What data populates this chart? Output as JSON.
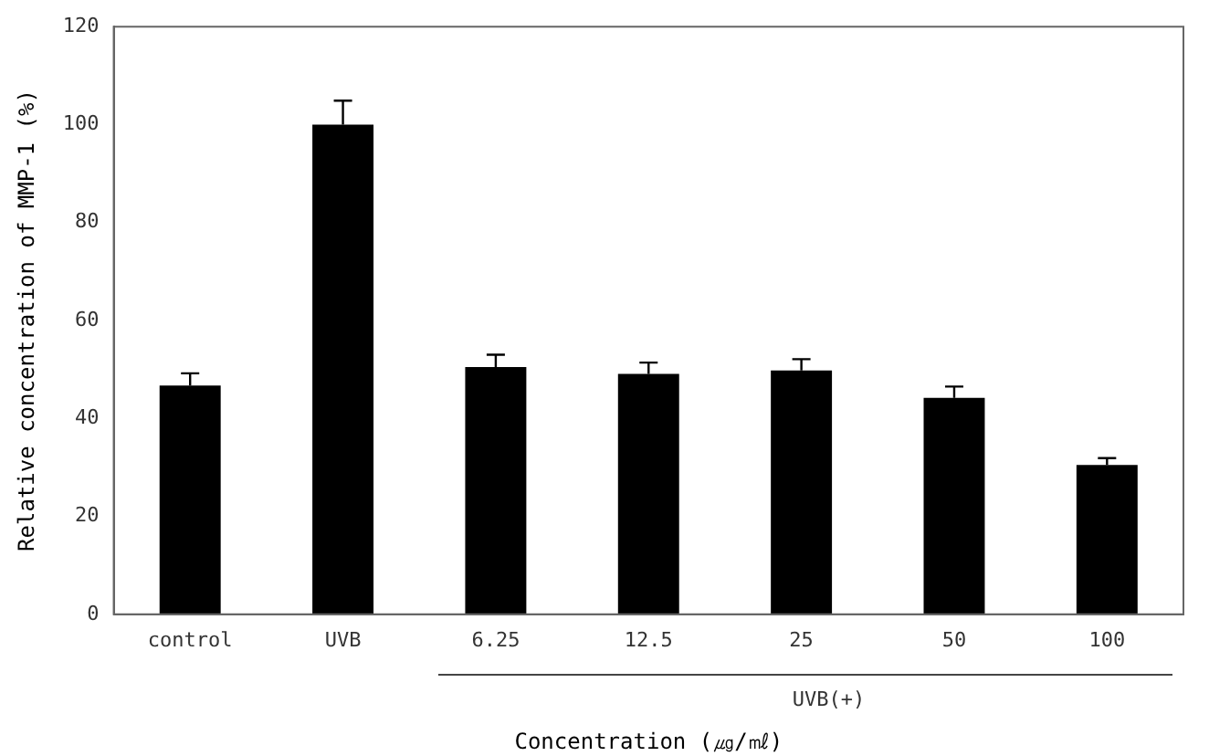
{
  "chart_data": {
    "type": "bar",
    "xlabel": "Concentration (㎍/㎖)",
    "ylabel": "Relative concentration of MMP-1 (%)",
    "categories": [
      "control",
      "UVB",
      "6.25",
      "12.5",
      "25",
      "50",
      "100"
    ],
    "values": [
      46.7,
      100,
      50.5,
      49.1,
      49.8,
      44.2,
      30.5
    ],
    "errors": [
      [
        46.7,
        49.2
      ],
      [
        100,
        104.9
      ],
      [
        50.5,
        53
      ],
      [
        49.1,
        51.4
      ],
      [
        49.8,
        52.1
      ],
      [
        44.2,
        46.5
      ],
      [
        30.5,
        31.9
      ]
    ],
    "color": "#000000",
    "ylim": [
      0,
      120
    ],
    "yticks": [
      0,
      20,
      40,
      60,
      80,
      100,
      120
    ],
    "grid": false,
    "legend": false,
    "annotations": [
      "UVB(+)"
    ]
  }
}
